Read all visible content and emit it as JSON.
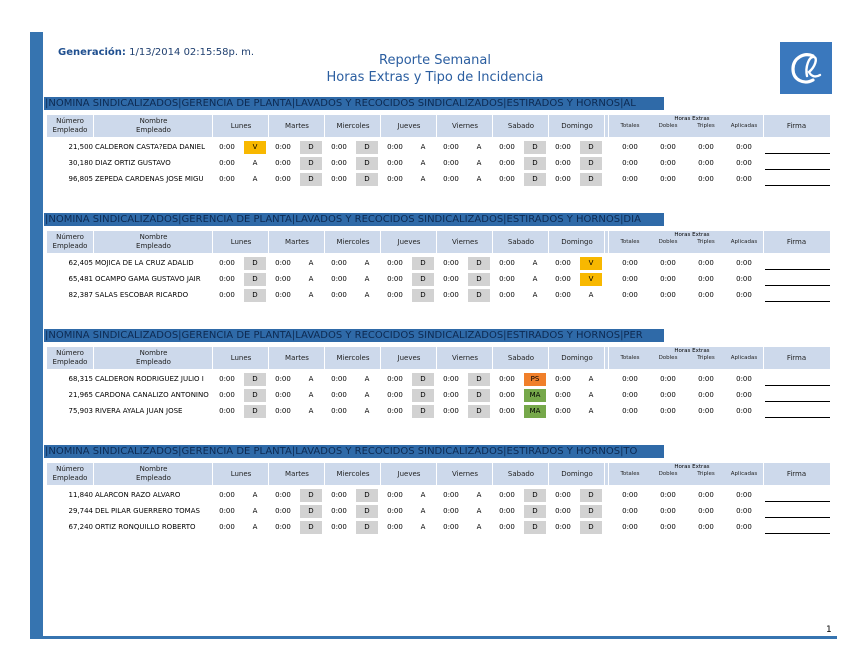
{
  "header": {
    "generation_label": "Generación:",
    "generation_value": "1/13/2014  02:15:58p. m.",
    "title_line1": "Reporte Semanal",
    "title_line2": "Horas Extras y Tipo de Incidencia",
    "page_number": "1"
  },
  "columns": {
    "numero": "Número",
    "empleado": "Empleado",
    "nombre": "Nombre",
    "nombre_empleado": "Empleado",
    "days": [
      "Lunes",
      "Martes",
      "Miercoles",
      "Jueves",
      "Viernes",
      "Sabado",
      "Domingo"
    ],
    "horas_extras": "Horas Extras",
    "totales": "Totales",
    "dobles": "Dobles",
    "triples": "Triples",
    "aplicadas": "Aplicadas",
    "firma": "Firma"
  },
  "colors": {
    "accent": "#3674b0",
    "title_bar": "#2f6aa8",
    "header_bg": "#cdd9eb",
    "status_gray": "#d2d2d2",
    "status_yellow": "#f8b800",
    "status_orange": "#f07f2a",
    "status_green": "#76a84a"
  },
  "groups": [
    {
      "title": "|NOMINA SINDICALIZADOS|GERENCIA DE PLANTA|LAVADOS Y RECOCIDOS SINDICALIZADOS|ESTIRADOS Y HORNOS|AL",
      "rows": [
        {
          "num": "21,500",
          "name": "CALDERON CASTA?EDA DANIEL",
          "days": [
            [
              "0:00",
              "V",
              "yellow"
            ],
            [
              "0:00",
              "D",
              "gray"
            ],
            [
              "0:00",
              "D",
              "gray"
            ],
            [
              "0:00",
              "A",
              ""
            ],
            [
              "0:00",
              "A",
              ""
            ],
            [
              "0:00",
              "D",
              "gray"
            ],
            [
              "0:00",
              "D",
              "gray"
            ]
          ],
          "tot": "0:00",
          "dob": "0:00",
          "tri": "0:00",
          "apl": "0:00"
        },
        {
          "num": "30,180",
          "name": "DIAZ ORTIZ GUSTAVO",
          "days": [
            [
              "0:00",
              "A",
              ""
            ],
            [
              "0:00",
              "D",
              "gray"
            ],
            [
              "0:00",
              "D",
              "gray"
            ],
            [
              "0:00",
              "A",
              ""
            ],
            [
              "0:00",
              "A",
              ""
            ],
            [
              "0:00",
              "D",
              "gray"
            ],
            [
              "0:00",
              "D",
              "gray"
            ]
          ],
          "tot": "0:00",
          "dob": "0:00",
          "tri": "0:00",
          "apl": "0:00"
        },
        {
          "num": "96,805",
          "name": "ZEPEDA CARDENAS JOSE MIGU",
          "days": [
            [
              "0:00",
              "A",
              ""
            ],
            [
              "0:00",
              "D",
              "gray"
            ],
            [
              "0:00",
              "D",
              "gray"
            ],
            [
              "0:00",
              "A",
              ""
            ],
            [
              "0:00",
              "A",
              ""
            ],
            [
              "0:00",
              "D",
              "gray"
            ],
            [
              "0:00",
              "D",
              "gray"
            ]
          ],
          "tot": "0:00",
          "dob": "0:00",
          "tri": "0:00",
          "apl": "0:00"
        }
      ]
    },
    {
      "title": "|NOMINA SINDICALIZADOS|GERENCIA DE PLANTA|LAVADOS Y RECOCIDOS SINDICALIZADOS|ESTIRADOS Y HORNOS|DIA",
      "rows": [
        {
          "num": "62,405",
          "name": "MOJICA DE LA CRUZ ADALID",
          "days": [
            [
              "0:00",
              "D",
              "gray"
            ],
            [
              "0:00",
              "A",
              ""
            ],
            [
              "0:00",
              "A",
              ""
            ],
            [
              "0:00",
              "D",
              "gray"
            ],
            [
              "0:00",
              "D",
              "gray"
            ],
            [
              "0:00",
              "A",
              ""
            ],
            [
              "0:00",
              "V",
              "yellow"
            ]
          ],
          "tot": "0:00",
          "dob": "0:00",
          "tri": "0:00",
          "apl": "0:00"
        },
        {
          "num": "65,481",
          "name": "OCAMPO GAMA GUSTAVO JAIR",
          "days": [
            [
              "0:00",
              "D",
              "gray"
            ],
            [
              "0:00",
              "A",
              ""
            ],
            [
              "0:00",
              "A",
              ""
            ],
            [
              "0:00",
              "D",
              "gray"
            ],
            [
              "0:00",
              "D",
              "gray"
            ],
            [
              "0:00",
              "A",
              ""
            ],
            [
              "0:00",
              "V",
              "yellow"
            ]
          ],
          "tot": "0:00",
          "dob": "0:00",
          "tri": "0:00",
          "apl": "0:00"
        },
        {
          "num": "82,387",
          "name": "SALAS ESCOBAR RICARDO",
          "days": [
            [
              "0:00",
              "D",
              "gray"
            ],
            [
              "0:00",
              "A",
              ""
            ],
            [
              "0:00",
              "A",
              ""
            ],
            [
              "0:00",
              "D",
              "gray"
            ],
            [
              "0:00",
              "D",
              "gray"
            ],
            [
              "0:00",
              "A",
              ""
            ],
            [
              "0:00",
              "A",
              ""
            ]
          ],
          "tot": "0:00",
          "dob": "0:00",
          "tri": "0:00",
          "apl": "0:00"
        }
      ]
    },
    {
      "title": "|NOMINA SINDICALIZADOS|GERENCIA DE PLANTA|LAVADOS Y RECOCIDOS SINDICALIZADOS|ESTIRADOS Y HORNOS|PER",
      "rows": [
        {
          "num": "68,315",
          "name": "CALDERON RODRIGUEZ JULIO I",
          "days": [
            [
              "0:00",
              "D",
              "gray"
            ],
            [
              "0:00",
              "A",
              ""
            ],
            [
              "0:00",
              "A",
              ""
            ],
            [
              "0:00",
              "D",
              "gray"
            ],
            [
              "0:00",
              "D",
              "gray"
            ],
            [
              "0:00",
              "PS",
              "orange"
            ],
            [
              "0:00",
              "A",
              ""
            ]
          ],
          "tot": "0:00",
          "dob": "0:00",
          "tri": "0:00",
          "apl": "0:00"
        },
        {
          "num": "21,965",
          "name": "CARDONA CANALIZO ANTONINO",
          "days": [
            [
              "0:00",
              "D",
              "gray"
            ],
            [
              "0:00",
              "A",
              ""
            ],
            [
              "0:00",
              "A",
              ""
            ],
            [
              "0:00",
              "D",
              "gray"
            ],
            [
              "0:00",
              "D",
              "gray"
            ],
            [
              "0:00",
              "MA",
              "green"
            ],
            [
              "0:00",
              "A",
              ""
            ]
          ],
          "tot": "0:00",
          "dob": "0:00",
          "tri": "0:00",
          "apl": "0:00"
        },
        {
          "num": "75,903",
          "name": "RIVERA AYALA JUAN JOSE",
          "days": [
            [
              "0:00",
              "D",
              "gray"
            ],
            [
              "0:00",
              "A",
              ""
            ],
            [
              "0:00",
              "A",
              ""
            ],
            [
              "0:00",
              "D",
              "gray"
            ],
            [
              "0:00",
              "D",
              "gray"
            ],
            [
              "0:00",
              "MA",
              "green"
            ],
            [
              "0:00",
              "A",
              ""
            ]
          ],
          "tot": "0:00",
          "dob": "0:00",
          "tri": "0:00",
          "apl": "0:00"
        }
      ]
    },
    {
      "title": "|NOMINA SINDICALIZADOS|GERENCIA DE PLANTA|LAVADOS Y RECOCIDOS SINDICALIZADOS|ESTIRADOS Y HORNOS|TO",
      "rows": [
        {
          "num": "11,840",
          "name": "ALARCON RAZO ALVARO",
          "days": [
            [
              "0:00",
              "A",
              ""
            ],
            [
              "0:00",
              "D",
              "gray"
            ],
            [
              "0:00",
              "D",
              "gray"
            ],
            [
              "0:00",
              "A",
              ""
            ],
            [
              "0:00",
              "A",
              ""
            ],
            [
              "0:00",
              "D",
              "gray"
            ],
            [
              "0:00",
              "D",
              "gray"
            ]
          ],
          "tot": "0:00",
          "dob": "0:00",
          "tri": "0:00",
          "apl": "0:00"
        },
        {
          "num": "29,744",
          "name": "DEL PILAR GUERRERO TOMAS",
          "days": [
            [
              "0:00",
              "A",
              ""
            ],
            [
              "0:00",
              "D",
              "gray"
            ],
            [
              "0:00",
              "D",
              "gray"
            ],
            [
              "0:00",
              "A",
              ""
            ],
            [
              "0:00",
              "A",
              ""
            ],
            [
              "0:00",
              "D",
              "gray"
            ],
            [
              "0:00",
              "D",
              "gray"
            ]
          ],
          "tot": "0:00",
          "dob": "0:00",
          "tri": "0:00",
          "apl": "0:00"
        },
        {
          "num": "67,240",
          "name": "ORTIZ RONQUILLO ROBERTO",
          "days": [
            [
              "0:00",
              "A",
              ""
            ],
            [
              "0:00",
              "D",
              "gray"
            ],
            [
              "0:00",
              "D",
              "gray"
            ],
            [
              "0:00",
              "A",
              ""
            ],
            [
              "0:00",
              "A",
              ""
            ],
            [
              "0:00",
              "D",
              "gray"
            ],
            [
              "0:00",
              "D",
              "gray"
            ]
          ],
          "tot": "0:00",
          "dob": "0:00",
          "tri": "0:00",
          "apl": "0:00"
        }
      ]
    }
  ]
}
